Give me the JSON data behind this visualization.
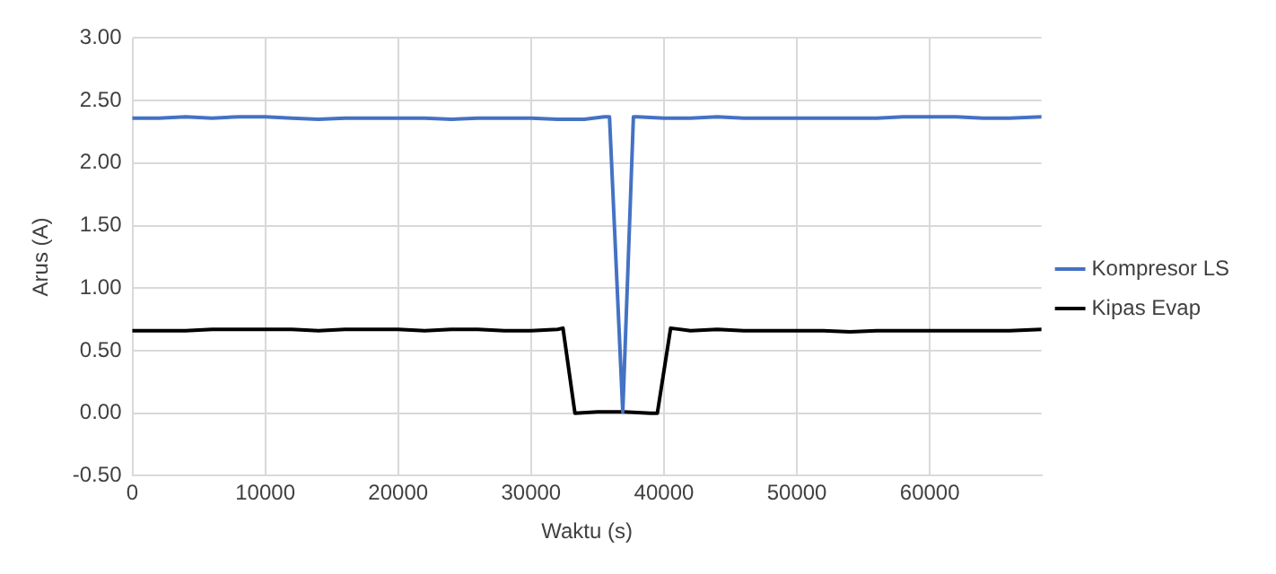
{
  "chart_data": {
    "type": "line",
    "xlabel": "Waktu (s)",
    "ylabel": "Arus (A)",
    "xlim": [
      0,
      68400
    ],
    "xticks": [
      0,
      10000,
      20000,
      30000,
      40000,
      50000,
      60000
    ],
    "ylim": [
      -0.5,
      3
    ],
    "yticks": [
      {
        "value": -0.5,
        "label": "-0.50"
      },
      {
        "value": 0,
        "label": "0.00"
      },
      {
        "value": 0.5,
        "label": "0.50"
      },
      {
        "value": 1,
        "label": "1.00"
      },
      {
        "value": 1.5,
        "label": "1.50"
      },
      {
        "value": 2,
        "label": "2.00"
      },
      {
        "value": 2.5,
        "label": "2.50"
      },
      {
        "value": 3,
        "label": "3.00"
      }
    ],
    "grid": true,
    "legend": "right",
    "marker": "none",
    "line_style": "solid",
    "series": [
      {
        "name": "Kompresor LS",
        "color": "#4472c4",
        "x": [
          0,
          2000,
          4000,
          6000,
          8000,
          10000,
          12000,
          14000,
          16000,
          18000,
          20000,
          22000,
          24000,
          26000,
          28000,
          30000,
          32000,
          34000,
          35500,
          35900,
          36900,
          37700,
          38000,
          40000,
          42000,
          44000,
          46000,
          48000,
          50000,
          52000,
          54000,
          56000,
          58000,
          60000,
          62000,
          64000,
          66000,
          68400
        ],
        "values": [
          2.36,
          2.36,
          2.37,
          2.36,
          2.37,
          2.37,
          2.36,
          2.35,
          2.36,
          2.36,
          2.36,
          2.36,
          2.35,
          2.36,
          2.36,
          2.36,
          2.35,
          2.35,
          2.37,
          2.37,
          0.01,
          2.37,
          2.37,
          2.36,
          2.36,
          2.37,
          2.36,
          2.36,
          2.36,
          2.36,
          2.36,
          2.36,
          2.37,
          2.37,
          2.37,
          2.36,
          2.36,
          2.37
        ]
      },
      {
        "name": "Kipas Evap",
        "color": "#000000",
        "x": [
          0,
          2000,
          4000,
          6000,
          8000,
          10000,
          12000,
          14000,
          16000,
          18000,
          20000,
          22000,
          24000,
          26000,
          28000,
          30000,
          32000,
          32400,
          33300,
          35000,
          37000,
          39000,
          39500,
          40500,
          42000,
          44000,
          46000,
          48000,
          50000,
          52000,
          54000,
          56000,
          58000,
          60000,
          62000,
          64000,
          66000,
          68400
        ],
        "values": [
          0.66,
          0.66,
          0.66,
          0.67,
          0.67,
          0.67,
          0.67,
          0.66,
          0.67,
          0.67,
          0.67,
          0.66,
          0.67,
          0.67,
          0.66,
          0.66,
          0.67,
          0.68,
          0.0,
          0.01,
          0.01,
          0.0,
          0.0,
          0.68,
          0.66,
          0.67,
          0.66,
          0.66,
          0.66,
          0.66,
          0.65,
          0.66,
          0.66,
          0.66,
          0.66,
          0.66,
          0.66,
          0.67
        ]
      }
    ]
  }
}
